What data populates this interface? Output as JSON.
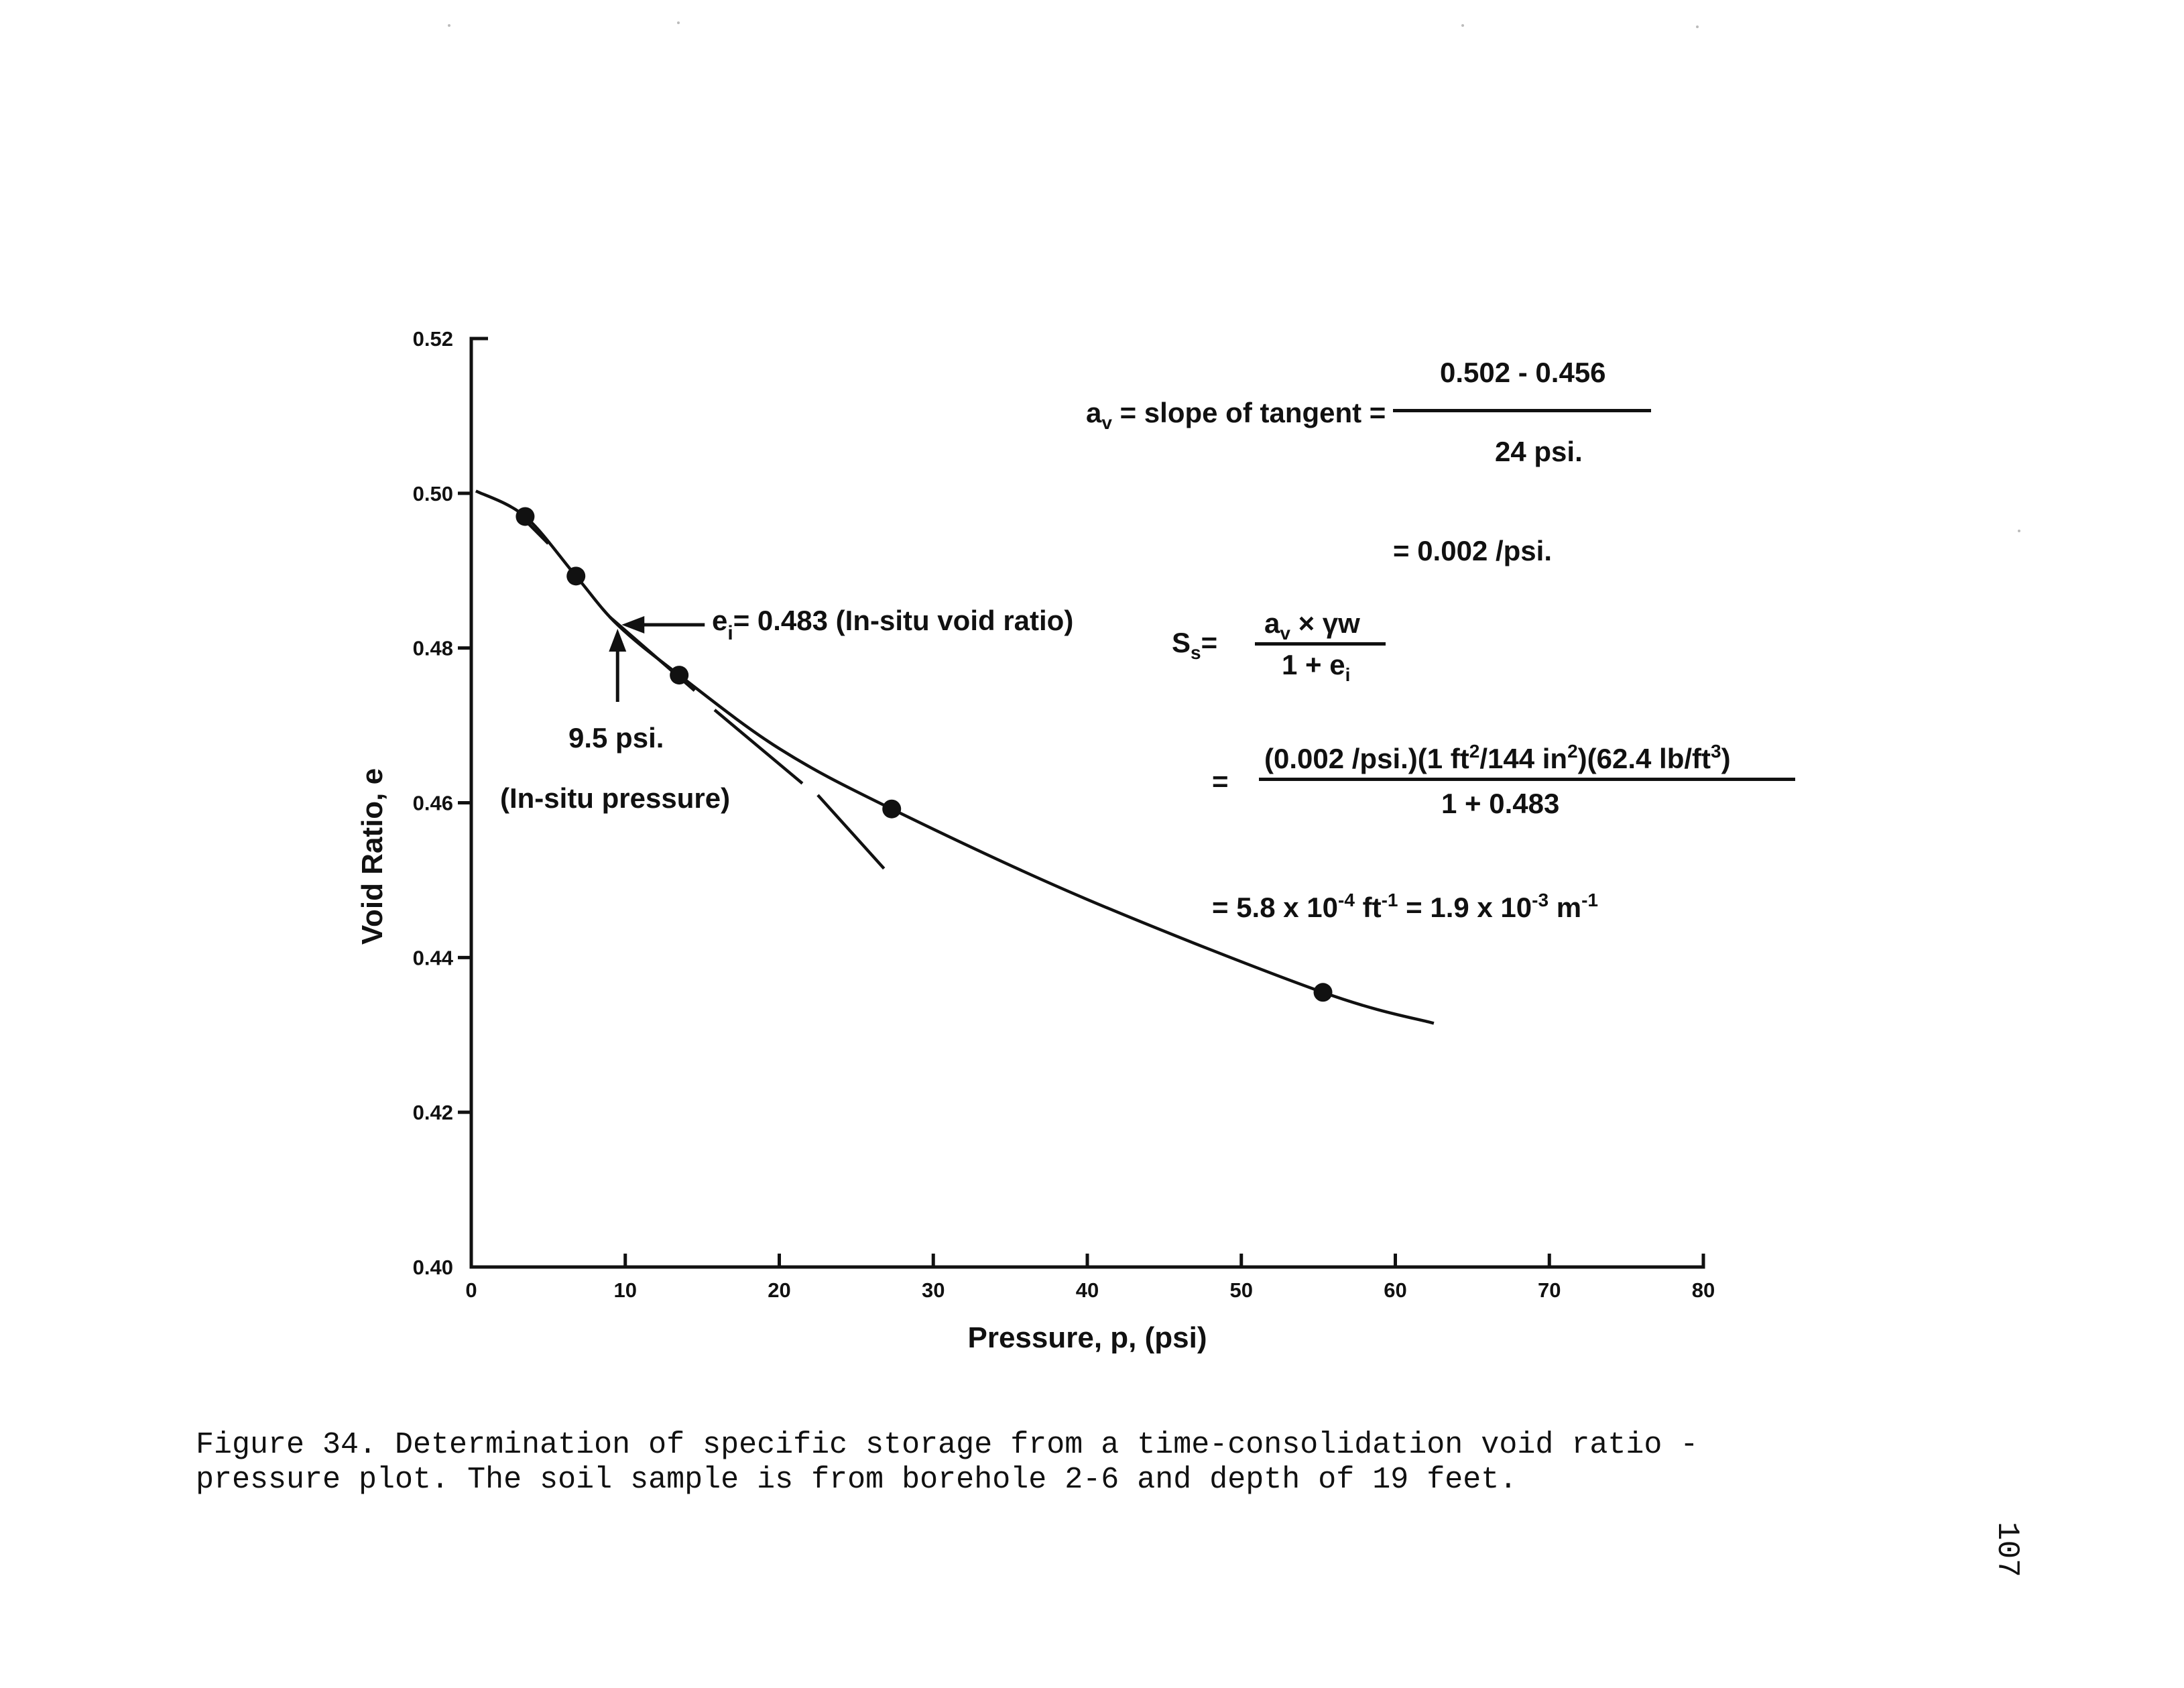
{
  "chart_data": {
    "type": "scatter",
    "xlabel": "Pressure, p, (psi)",
    "ylabel": "Void Ratio, e",
    "xlim": [
      0,
      80
    ],
    "ylim": [
      0.4,
      0.52
    ],
    "xticks": [
      "0",
      "10",
      "20",
      "30",
      "40",
      "50",
      "60",
      "70",
      "80"
    ],
    "yticks": [
      "0.40",
      "0.42",
      "0.44",
      "0.46",
      "0.48",
      "0.50",
      "0.52"
    ],
    "points": [
      {
        "x": 3.5,
        "y": 0.497
      },
      {
        "x": 6.8,
        "y": 0.4893
      },
      {
        "x": 13.5,
        "y": 0.4765
      },
      {
        "x": 27.3,
        "y": 0.4592
      },
      {
        "x": 55.3,
        "y": 0.4355
      }
    ],
    "curve": [
      {
        "x": 0.3,
        "y": 0.5003
      },
      {
        "x": 3.5,
        "y": 0.497
      },
      {
        "x": 6.8,
        "y": 0.4893
      },
      {
        "x": 9.5,
        "y": 0.483
      },
      {
        "x": 13.5,
        "y": 0.4765
      },
      {
        "x": 20,
        "y": 0.467
      },
      {
        "x": 27.3,
        "y": 0.4592
      },
      {
        "x": 40,
        "y": 0.4475
      },
      {
        "x": 55.3,
        "y": 0.4355
      },
      {
        "x": 62.5,
        "y": 0.4315
      }
    ],
    "tangent_segments": [
      {
        "x1": 3.5,
        "y1": 0.4965,
        "x2": 5.0,
        "y2": 0.4935
      },
      {
        "x1": 9.0,
        "y1": 0.484,
        "x2": 14.5,
        "y2": 0.4745
      },
      {
        "x1": 15.8,
        "y1": 0.472,
        "x2": 21.5,
        "y2": 0.4625
      },
      {
        "x1": 22.5,
        "y1": 0.461,
        "x2": 26.8,
        "y2": 0.4515
      }
    ],
    "annotations": {
      "ei_text": "e",
      "ei_sub": "i",
      "ei_rest": "= 0.483 (In-situ void ratio)",
      "pressure_value": "9.5 psi.",
      "pressure_label": "(In-situ pressure)"
    }
  },
  "equations": {
    "av_lhs": "a",
    "av_sub": "v",
    "av_mid": "= slope of tangent =",
    "av_num": "0.502 - 0.456",
    "av_den": "24 psi.",
    "av_result": "= 0.002 /psi.",
    "ss_lhs": "S",
    "ss_sub": "s",
    "ss_eq": "=",
    "ss_num": "a",
    "ss_num_sub": "v",
    "ss_num_rest": "× γw",
    "ss_den": "1 + e",
    "ss_den_sub": "i",
    "calc_eq": "=",
    "calc_num_a": "(0.002 /psi.)(1 ft",
    "calc_sup1": "2",
    "calc_num_b": "/144 in",
    "calc_sup2": "2",
    "calc_num_c": ")(62.4 lb/ft",
    "calc_sup3": "3",
    "calc_num_d": ")",
    "calc_den": "1 + 0.483",
    "final_a": "= 5.8 x 10",
    "final_exp1": "-4",
    "final_b": "ft",
    "final_exp2": "-1",
    "final_c": "= 1.9 x 10",
    "final_exp3": "-3",
    "final_d": "m",
    "final_exp4": "-1"
  },
  "caption": {
    "text": "Figure 34.  Determination of specific storage from a time-consolidation void ratio -\npressure plot.  The soil sample is from borehole 2-6 and depth of 19 feet."
  },
  "page_number": "107"
}
